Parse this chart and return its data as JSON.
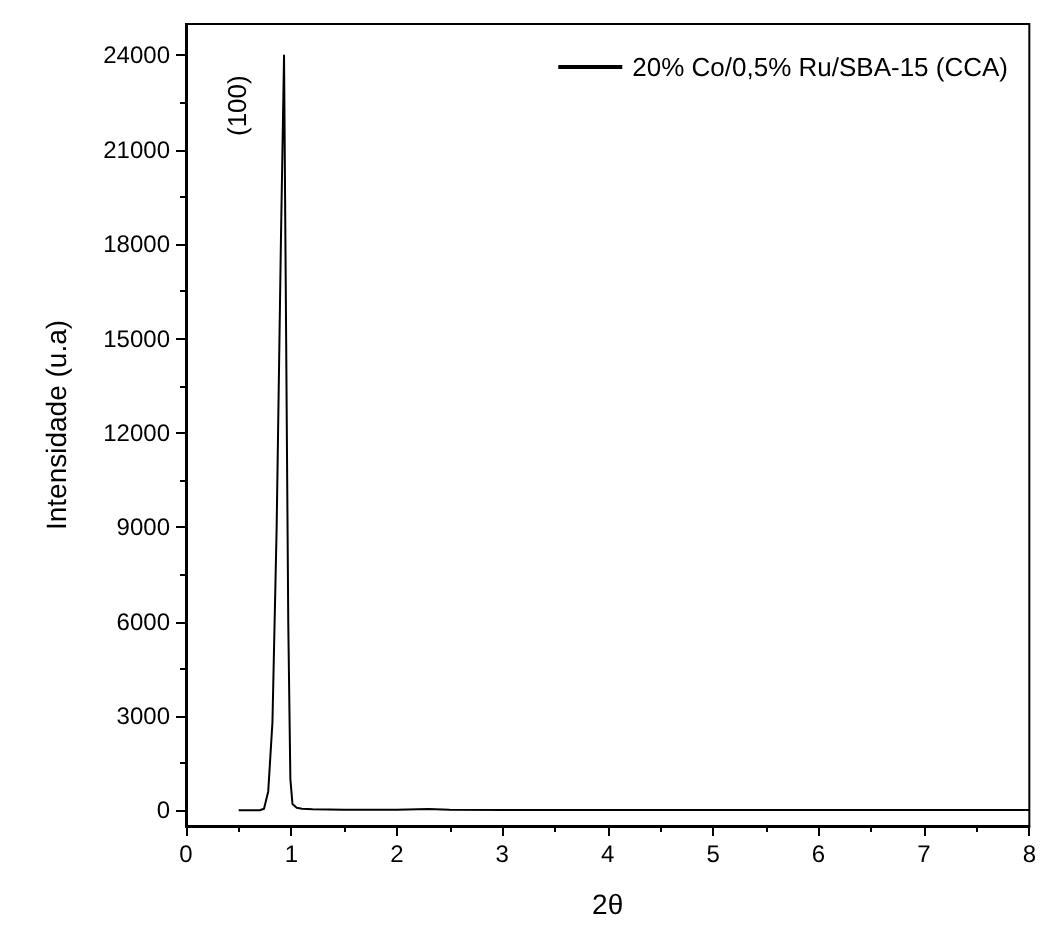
{
  "chart_data": {
    "type": "line",
    "xlabel": "2θ",
    "ylabel": "Intensidade (u.a)",
    "legend": "top right",
    "grid": false,
    "marker": "none",
    "line_style": "solid",
    "annotations": [
      "(100)"
    ],
    "xlim": [
      0,
      8
    ],
    "xticks": [
      0,
      1,
      2,
      3,
      4,
      5,
      6,
      7,
      8
    ],
    "ylim": [
      -500,
      25000
    ],
    "yticks": [
      0,
      3000,
      6000,
      9000,
      12000,
      15000,
      18000,
      21000,
      24000
    ],
    "series": [
      {
        "name": "20% Co/0,5% Ru/SBA-15 (CCA)",
        "color": "#000000",
        "x": [
          0.5,
          0.6,
          0.7,
          0.74,
          0.78,
          0.82,
          0.86,
          0.9,
          0.93,
          0.95,
          0.97,
          0.99,
          1.01,
          1.05,
          1.1,
          1.2,
          1.5,
          2.0,
          2.3,
          2.5,
          3.0,
          4.0,
          5.0,
          6.0,
          7.0,
          8.0
        ],
        "values": [
          0,
          0,
          0,
          50,
          600,
          2800,
          9000,
          18000,
          24000,
          15000,
          6000,
          1000,
          200,
          80,
          50,
          30,
          20,
          20,
          40,
          20,
          10,
          10,
          10,
          10,
          10,
          10
        ]
      }
    ]
  }
}
